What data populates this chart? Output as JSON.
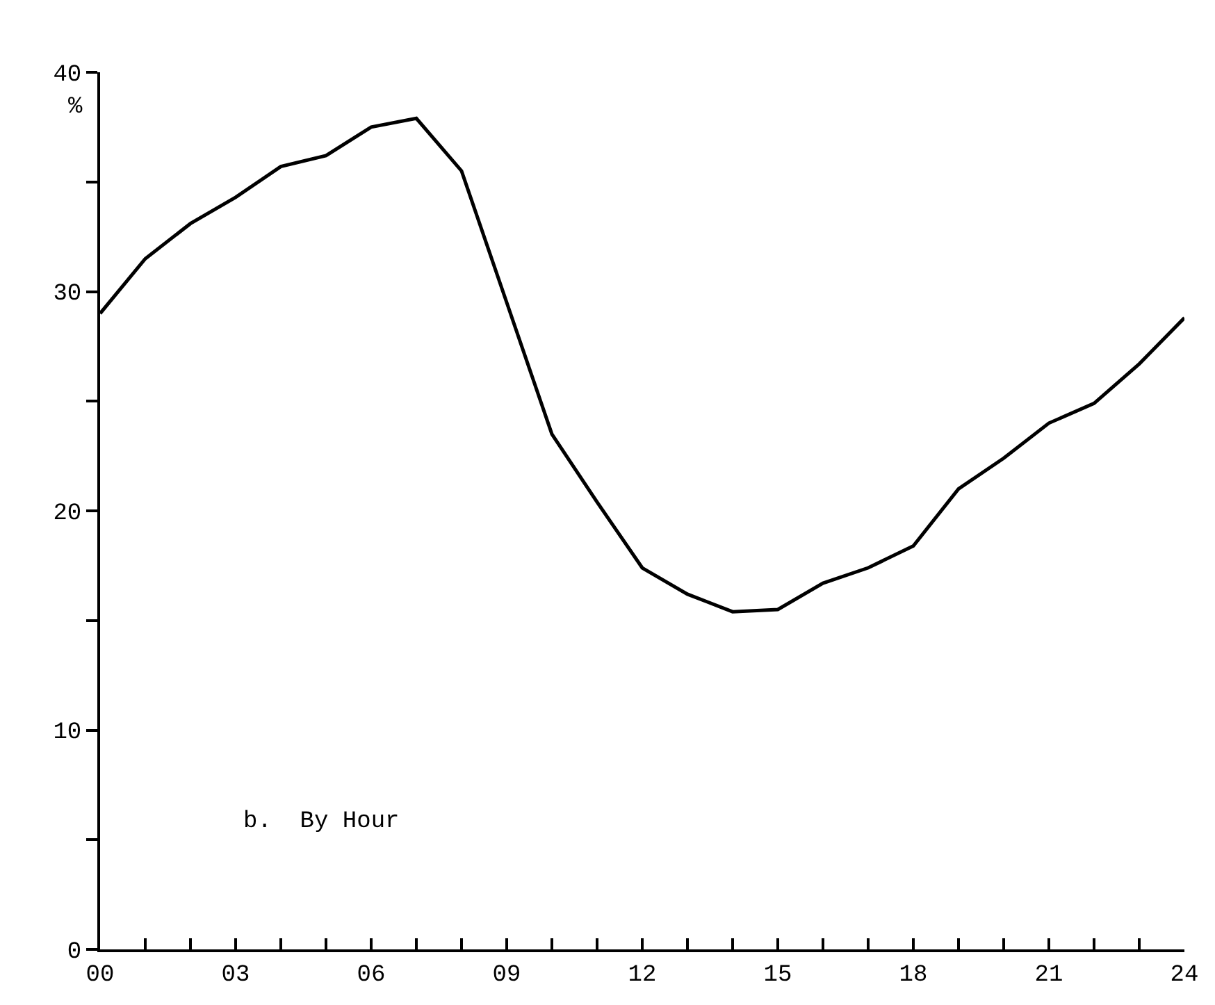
{
  "chart_data": {
    "type": "line",
    "ylabel": "%",
    "annotations": [
      "b.  By Hour"
    ],
    "x": [
      0,
      1,
      2,
      3,
      4,
      5,
      6,
      7,
      8,
      9,
      10,
      11,
      12,
      13,
      14,
      15,
      16,
      17,
      18,
      19,
      20,
      21,
      22,
      23,
      24
    ],
    "series": [
      {
        "color": "#000000",
        "values": [
          29.0,
          31.5,
          33.1,
          34.3,
          35.7,
          36.2,
          37.5,
          37.9,
          35.5,
          29.5,
          23.5,
          20.4,
          17.4,
          16.2,
          15.4,
          15.5,
          16.7,
          17.4,
          18.4,
          21.0,
          22.4,
          24.0,
          24.9,
          26.7,
          28.8
        ]
      }
    ],
    "xlim": [
      0,
      24
    ],
    "xticks": [
      {
        "value": 0,
        "label": "00"
      },
      {
        "value": 1,
        "label": null
      },
      {
        "value": 2,
        "label": null
      },
      {
        "value": 3,
        "label": "03"
      },
      {
        "value": 4,
        "label": null
      },
      {
        "value": 5,
        "label": null
      },
      {
        "value": 6,
        "label": "06"
      },
      {
        "value": 7,
        "label": null
      },
      {
        "value": 8,
        "label": null
      },
      {
        "value": 9,
        "label": "09"
      },
      {
        "value": 10,
        "label": null
      },
      {
        "value": 11,
        "label": null
      },
      {
        "value": 12,
        "label": "12"
      },
      {
        "value": 13,
        "label": null
      },
      {
        "value": 14,
        "label": null
      },
      {
        "value": 15,
        "label": "15"
      },
      {
        "value": 16,
        "label": null
      },
      {
        "value": 17,
        "label": null
      },
      {
        "value": 18,
        "label": "18"
      },
      {
        "value": 19,
        "label": null
      },
      {
        "value": 20,
        "label": null
      },
      {
        "value": 21,
        "label": "21"
      },
      {
        "value": 22,
        "label": null
      },
      {
        "value": 23,
        "label": null
      },
      {
        "value": 24,
        "label": "24"
      }
    ],
    "ylim": [
      0,
      40
    ],
    "yticks": [
      0,
      {
        "value": 5,
        "label": null
      },
      10,
      {
        "value": 15,
        "label": null
      },
      20,
      {
        "value": 25,
        "label": null
      },
      30,
      {
        "value": 35,
        "label": null
      },
      40
    ],
    "marker": "none",
    "line_style": "solid"
  }
}
